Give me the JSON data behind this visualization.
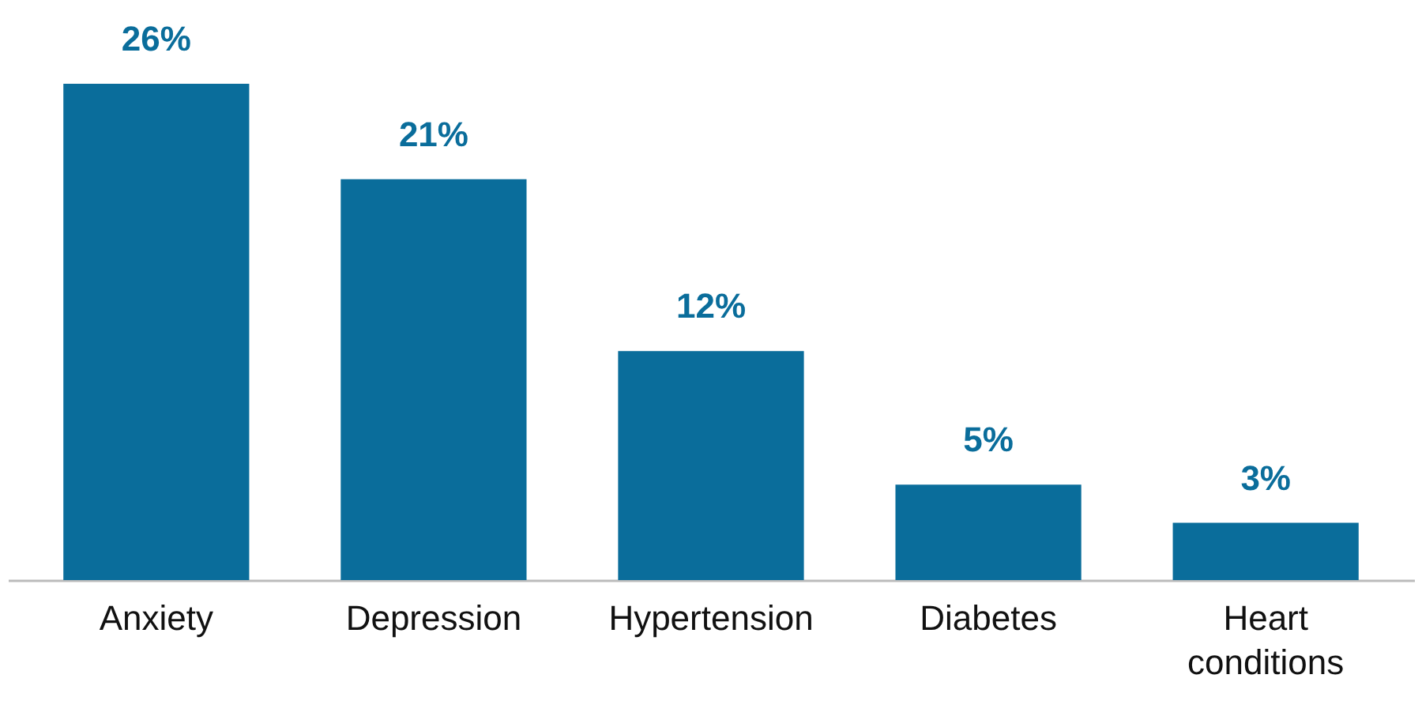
{
  "chart_data": {
    "type": "bar",
    "categories": [
      "Anxiety",
      "Depression",
      "Hypertension",
      "Diabetes",
      "Heart conditions"
    ],
    "values": [
      26,
      21,
      12,
      5,
      3
    ],
    "value_labels": [
      "26%",
      "21%",
      "12%",
      "5%",
      "3%"
    ],
    "color": "#0a6d9b",
    "tick_labels": "x"
  }
}
